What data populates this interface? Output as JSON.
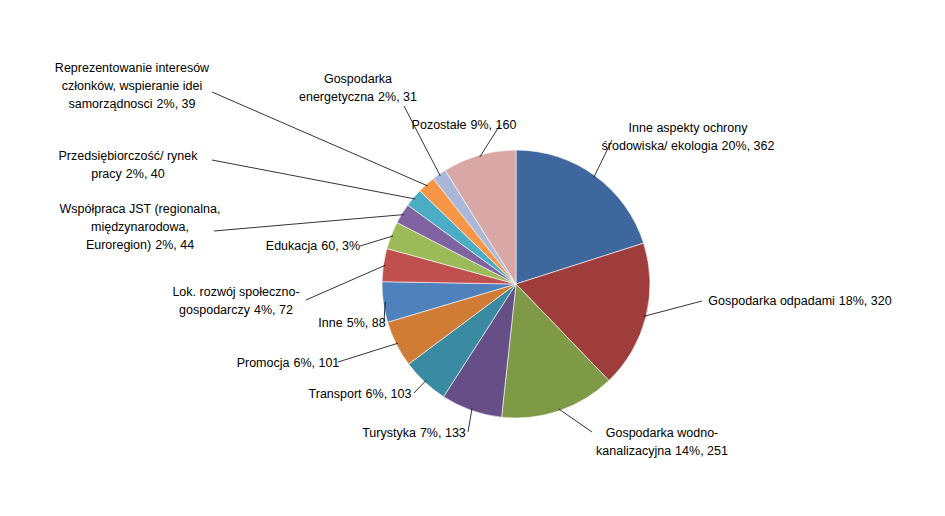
{
  "chart_data": {
    "type": "pie",
    "categories": [
      "Inne aspekty ochrony\nśrodowiska/ ekologia",
      "Gospodarka odpadami",
      "Gospodarka wodno-\nkanalizacyjna",
      "Turystyka",
      "Transport",
      "Promocja",
      "Inne",
      "Lok. rozwój społeczno-\ngospodarczy",
      "Edukacja",
      "Współpraca JST (regionalna,\nmiędzynarodowa,\nEuroregion)",
      "Przedsiębiorczość/ rynek\npracy",
      "Reprezentowanie interesów\nczłonków, wspieranie idei\nsamorządnosci",
      "Gospodarka\nenergetyczna",
      "Pozostałe"
    ],
    "values": [
      362,
      320,
      251,
      133,
      103,
      101,
      88,
      72,
      60,
      44,
      40,
      39,
      31,
      160
    ],
    "value_labels": [
      "20%, 362",
      "18%, 320",
      "14%, 251",
      "7%, 133",
      "6%, 103",
      "6%, 101",
      "5%, 88",
      "4%, 72",
      "60, 3%",
      "2%, 44",
      "2%, 40",
      "2%, 39",
      "2%, 31",
      "9%, 160"
    ],
    "colors": [
      "#3E679E",
      "#9E3D3B",
      "#7E9A46",
      "#664F87",
      "#3A8BA1",
      "#D07C35",
      "#4F81BD",
      "#C0504D",
      "#9BBB59",
      "#8064A2",
      "#4BACC6",
      "#F79646",
      "#A9B8D9",
      "#D9A7A6"
    ],
    "data_labels": true
  }
}
